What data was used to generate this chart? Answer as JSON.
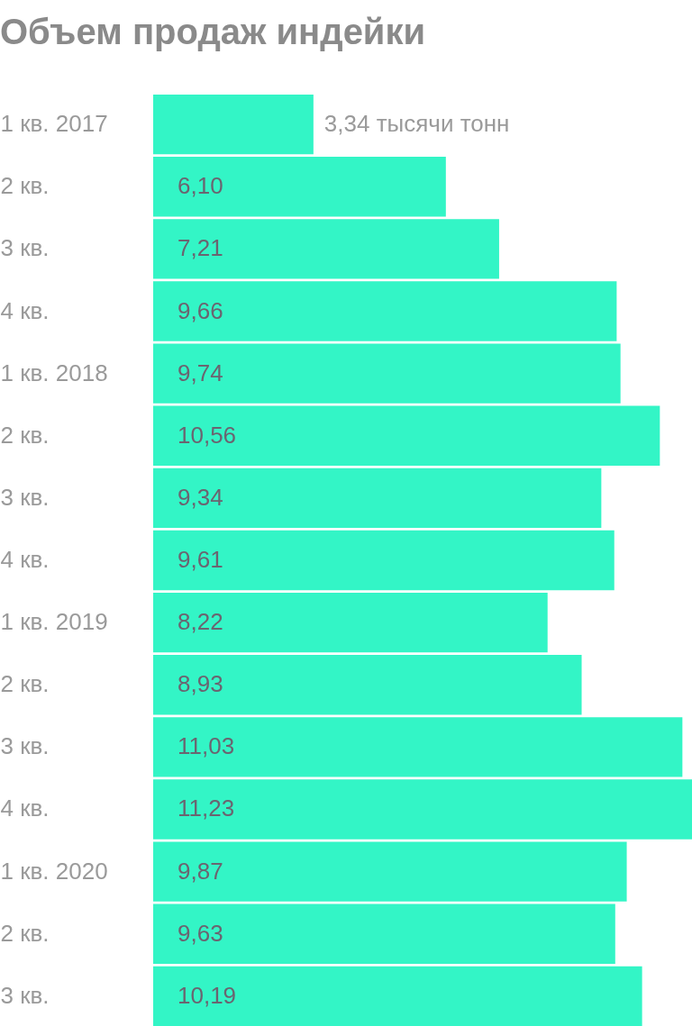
{
  "chart_data": {
    "type": "bar",
    "orientation": "horizontal",
    "title": "Объем продаж индейки",
    "categories": [
      "1 кв. 2017",
      "2 кв.",
      "3 кв.",
      "4 кв.",
      "1 кв. 2018",
      "2 кв.",
      "3 кв.",
      "4 кв.",
      "1 кв. 2019",
      "2 кв.",
      "3 кв.",
      "4 кв.",
      "1 кв. 2020",
      "2 кв.",
      "3 кв."
    ],
    "values": [
      3.34,
      6.1,
      7.21,
      9.66,
      9.74,
      10.56,
      9.34,
      9.61,
      8.22,
      8.93,
      11.03,
      11.23,
      9.87,
      9.63,
      10.19
    ],
    "value_labels": [
      "3,34 тысячи тонн",
      "6,10",
      "7,21",
      "9,66",
      "9,74",
      "10,56",
      "9,34",
      "9,61",
      "8,22",
      "8,93",
      "11,03",
      "11,23",
      "9,87",
      "9,63",
      "10,19"
    ],
    "color": "#33f5c6",
    "xlim": [
      0,
      11.23
    ],
    "tick_labels": "y"
  }
}
